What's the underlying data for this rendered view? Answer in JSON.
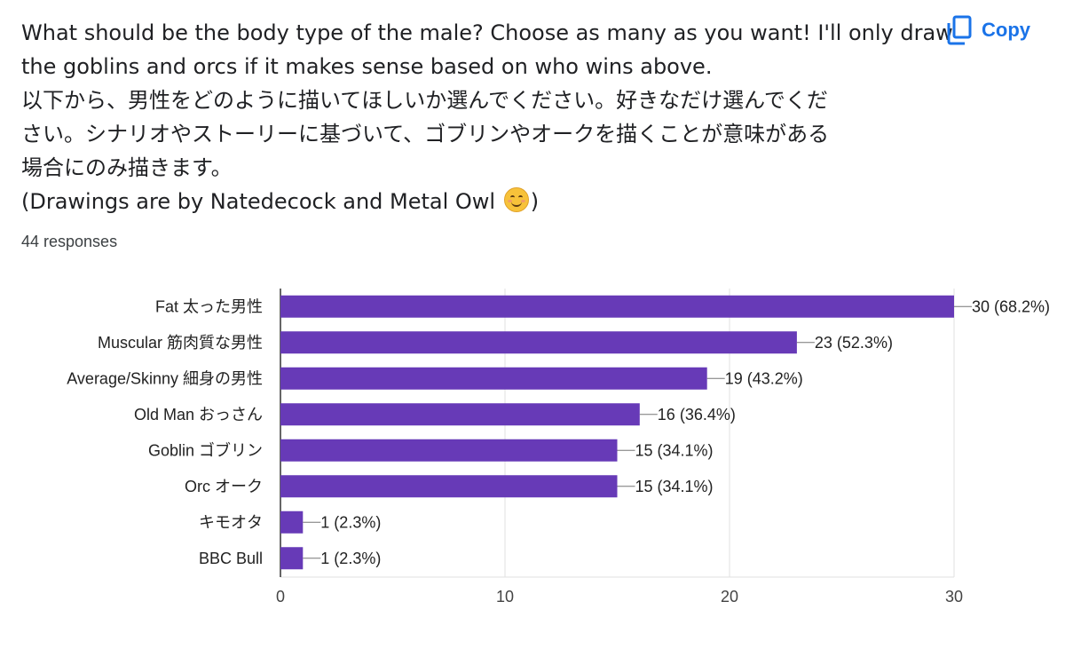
{
  "question": {
    "lines": [
      "What should be the body type of the male? Choose as many as you want! I'll only draw",
      "the goblins and orcs if it makes sense based on who wins above.",
      "以下から、男性をどのように描いてほしいか選んでください。好きなだけ選んでくだ",
      "さい。シナリオやストーリーに基づいて、ゴブリンやオークを描くことが意味がある",
      "場合にのみ描きます。"
    ],
    "credit_text": "(Drawings are by Natedecock and Metal Owl",
    "credit_close": ")"
  },
  "copy_button": {
    "label": "Copy",
    "icon": "copy-icon"
  },
  "responses_text": "44 responses",
  "colors": {
    "bar": "#673ab7",
    "accent": "#1a73e8",
    "grid": "#e0e0e0",
    "axis": "#333333"
  },
  "chart_data": {
    "type": "bar",
    "orientation": "horizontal",
    "categories": [
      "Fat 太った男性",
      "Muscular 筋肉質な男性",
      "Average/Skinny 細身の男性",
      "Old Man おっさん",
      "Goblin ゴブリン",
      "Orc オーク",
      "キモオタ",
      "BBC Bull"
    ],
    "values": [
      30,
      23,
      19,
      16,
      15,
      15,
      1,
      1
    ],
    "value_labels": [
      "30 (68.2%)",
      "23 (52.3%)",
      "19 (43.2%)",
      "16 (36.4%)",
      "15 (34.1%)",
      "15 (34.1%)",
      "1 (2.3%)",
      "1 (2.3%)"
    ],
    "xlim": [
      0,
      30
    ],
    "xticks": [
      0,
      10,
      20,
      30
    ],
    "grid": true
  }
}
